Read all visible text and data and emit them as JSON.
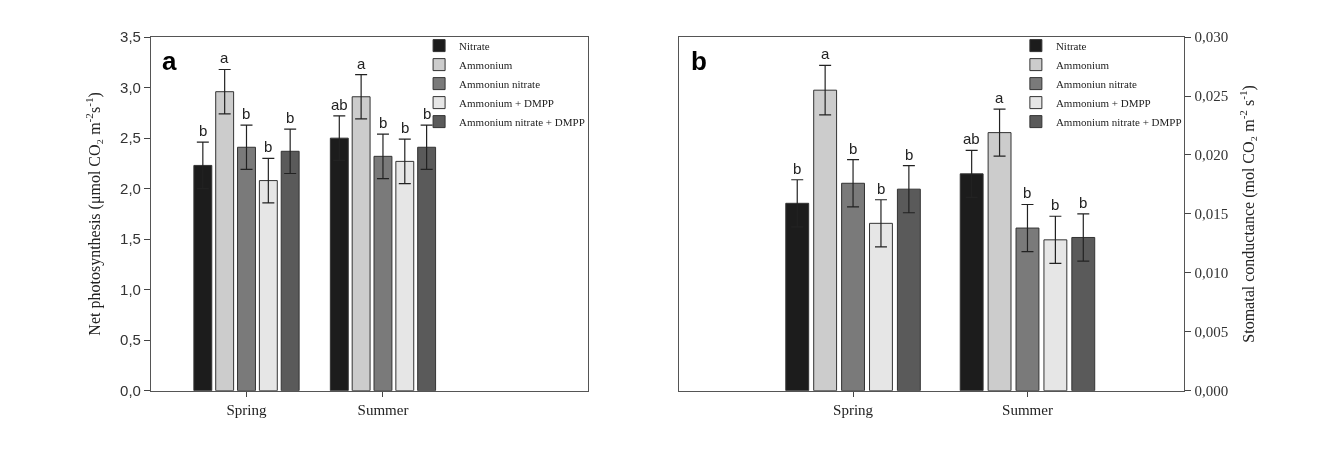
{
  "chart_data": [
    {
      "type": "bar",
      "categories": [
        "Spring",
        "Summer"
      ],
      "ylabel": "Net photosynthesis (μmol CO₂ m$^{-2}$s$^{-1}$)",
      "annotations": [
        "a"
      ],
      "legend": "top right",
      "ylim": [
        0,
        3.5
      ],
      "yticks": [
        {
          "value": 0,
          "label": "0,0"
        },
        {
          "value": 0.5,
          "label": "0,5"
        },
        {
          "value": 1,
          "label": "1,0"
        },
        {
          "value": 1.5,
          "label": "1,5"
        },
        {
          "value": 2,
          "label": "2,0"
        },
        {
          "value": 2.5,
          "label": "2,5"
        },
        {
          "value": 3,
          "label": "3,0"
        },
        {
          "value": 3.5,
          "label": "3,5"
        }
      ],
      "series": [
        {
          "name": "Nitrate",
          "color": "#1c1c1c",
          "values": [
            2.23,
            2.5
          ],
          "errors": [
            0.23,
            0.22
          ],
          "value_labels": [
            "b",
            "ab"
          ]
        },
        {
          "name": "Ammonium",
          "color": "#cccccc",
          "values": [
            2.96,
            2.91
          ],
          "errors": [
            0.22,
            0.22
          ],
          "value_labels": [
            "a",
            "a"
          ]
        },
        {
          "name": "Ammoniun nitrate",
          "color": "#7a7a7a",
          "values": [
            2.41,
            2.32
          ],
          "errors": [
            0.22,
            0.22
          ],
          "value_labels": [
            "b",
            "b"
          ]
        },
        {
          "name": "Ammonium + DMPP",
          "color": "#e6e6e6",
          "values": [
            2.08,
            2.27
          ],
          "errors": [
            0.22,
            0.22
          ],
          "value_labels": [
            "b",
            "b"
          ]
        },
        {
          "name": "Ammonium nitrate + DMPP",
          "color": "#5a5a5a",
          "values": [
            2.37,
            2.41
          ],
          "errors": [
            0.22,
            0.22
          ],
          "value_labels": [
            "b",
            "b"
          ]
        }
      ]
    },
    {
      "type": "bar",
      "categories": [
        "Spring",
        "Summer"
      ],
      "y2label": "Stomatal conductance (mol CO₂ m$^{-2}$ s$^{-1}$)",
      "annotations": [
        "b"
      ],
      "legend": "top right",
      "y2lim": [
        0,
        0.03
      ],
      "y2ticks": [
        {
          "value": 0,
          "label": "0,000"
        },
        {
          "value": 0.005,
          "label": "0,005"
        },
        {
          "value": 0.01,
          "label": "0,010"
        },
        {
          "value": 0.015,
          "label": "0,015"
        },
        {
          "value": 0.02,
          "label": "0,020"
        },
        {
          "value": 0.025,
          "label": "0,025"
        },
        {
          "value": 0.03,
          "label": "0,030"
        }
      ],
      "series": [
        {
          "name": "Nitrate",
          "color": "#1c1c1c",
          "axis": "y2",
          "values": [
            0.0159,
            0.0184
          ],
          "errors": [
            0.002,
            0.002
          ],
          "value_labels": [
            "b",
            "ab"
          ]
        },
        {
          "name": "Ammonium",
          "color": "#cccccc",
          "axis": "y2",
          "values": [
            0.0255,
            0.0219
          ],
          "errors": [
            0.0021,
            0.002
          ],
          "value_labels": [
            "a",
            "a"
          ]
        },
        {
          "name": "Ammoniun nitrate",
          "color": "#7a7a7a",
          "axis": "y2",
          "values": [
            0.0176,
            0.0138
          ],
          "errors": [
            0.002,
            0.002
          ],
          "value_labels": [
            "b",
            "b"
          ]
        },
        {
          "name": "Ammonium + DMPP",
          "color": "#e6e6e6",
          "axis": "y2",
          "values": [
            0.0142,
            0.0128
          ],
          "errors": [
            0.002,
            0.002
          ],
          "value_labels": [
            "b",
            "b"
          ]
        },
        {
          "name": "Ammonium nitrate + DMPP",
          "color": "#5a5a5a",
          "axis": "y2",
          "values": [
            0.0171,
            0.013
          ],
          "errors": [
            0.002,
            0.002
          ],
          "value_labels": [
            "b",
            "b"
          ]
        }
      ]
    }
  ]
}
